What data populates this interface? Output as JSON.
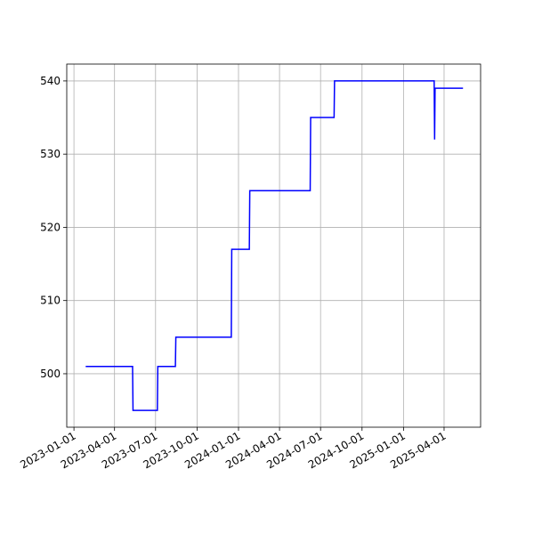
{
  "chart_data": {
    "type": "line",
    "x": [
      "2023-01-27",
      "2023-05-11",
      "2023-05-12",
      "2023-07-05",
      "2023-07-06",
      "2023-08-14",
      "2023-08-15",
      "2023-12-16",
      "2023-12-17",
      "2024-01-25",
      "2024-01-26",
      "2024-06-08",
      "2024-06-09",
      "2024-07-31",
      "2024-08-01",
      "2025-03-10",
      "2025-03-11",
      "2025-03-12",
      "2025-05-13"
    ],
    "values": [
      501,
      501,
      495,
      495,
      501,
      501,
      505,
      505,
      517,
      517,
      525,
      525,
      535,
      535,
      540,
      540,
      532,
      539,
      539
    ],
    "color": "#0000ff",
    "xlim": [
      "2022-12-16",
      "2025-06-21"
    ],
    "xticks": [
      "2023-01-01",
      "2023-04-01",
      "2023-07-01",
      "2023-10-01",
      "2024-01-01",
      "2024-04-01",
      "2024-07-01",
      "2024-10-01",
      "2025-01-01",
      "2025-04-01"
    ],
    "ylim": [
      492.7,
      542.3
    ],
    "yticks": [
      500,
      510,
      520,
      530,
      540
    ],
    "grid": true
  }
}
